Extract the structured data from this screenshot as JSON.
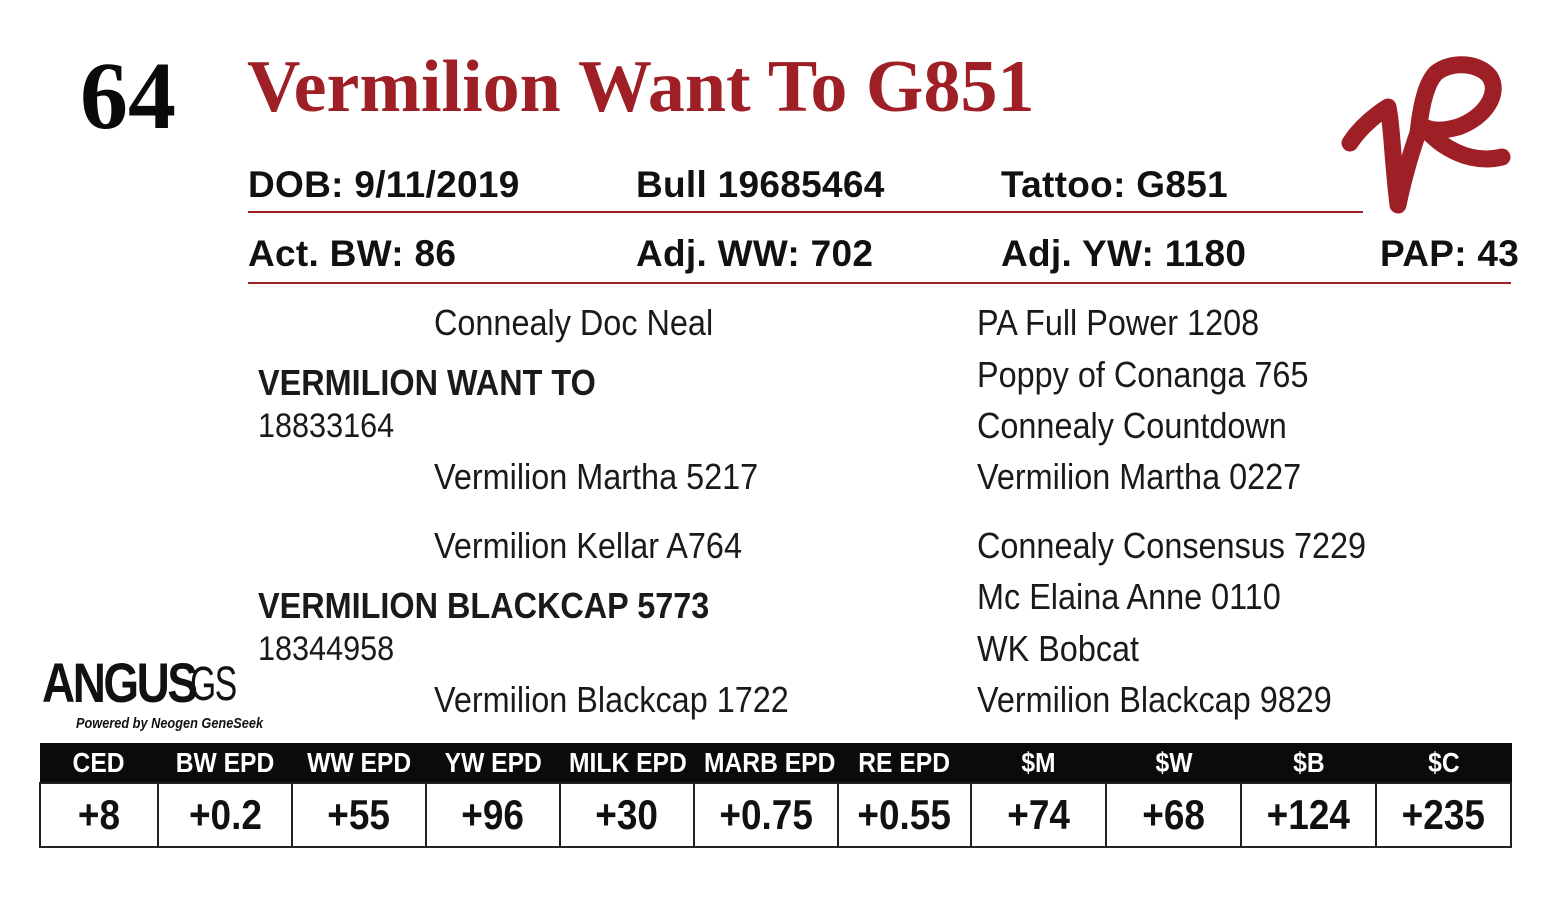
{
  "lot_number": "64",
  "animal_name": "Vermilion Want To G851",
  "stats_row1": {
    "dob": "DOB:  9/11/2019",
    "registration": "Bull   19685464",
    "tattoo": "Tattoo:  G851"
  },
  "stats_row2": {
    "act_bw": "Act. BW: 86",
    "adj_ww": "Adj. WW: 702",
    "adj_yw": "Adj. YW: 1180",
    "pap": "PAP: 43"
  },
  "pedigree": {
    "sire": {
      "name": "VERMILION WANT TO",
      "reg": "18833164",
      "sire": "Connealy Doc Neal",
      "dam": "Vermilion Martha 5217",
      "sire_sire": "PA Full Power 1208",
      "sire_dam": "Poppy of Conanga 765",
      "dam_sire": "Connealy Countdown",
      "dam_dam": "Vermilion Martha 0227"
    },
    "dam": {
      "name": "VERMILION BLACKCAP 5773",
      "reg": "18344958",
      "sire": "Vermilion Kellar A764",
      "dam": "Vermilion Blackcap 1722",
      "sire_sire": "Connealy Consensus 7229",
      "sire_dam": "Mc Elaina Anne 0110",
      "dam_sire": "WK Bobcat",
      "dam_dam": "Vermilion Blackcap 9829"
    }
  },
  "angus_logo": {
    "main": "ANGUS",
    "suffix": "GS",
    "tagline": "Powered by Neogen GeneSeek"
  },
  "brand_logo": {
    "icon": "vr-brand-logo",
    "color": "#9e2026"
  },
  "epd": {
    "headers": [
      "CED",
      "BW EPD",
      "WW EPD",
      "YW EPD",
      "MILK EPD",
      "MARB EPD",
      "RE EPD",
      "$M",
      "$W",
      "$B",
      "$C"
    ],
    "values": [
      "+8",
      "+0.2",
      "+55",
      "+96",
      "+30",
      "+0.75",
      "+0.55",
      "+74",
      "+68",
      "+124",
      "+235"
    ]
  },
  "colors": {
    "accent": "#9e2026",
    "text": "#111111",
    "header_bg": "#0b0b0b"
  }
}
